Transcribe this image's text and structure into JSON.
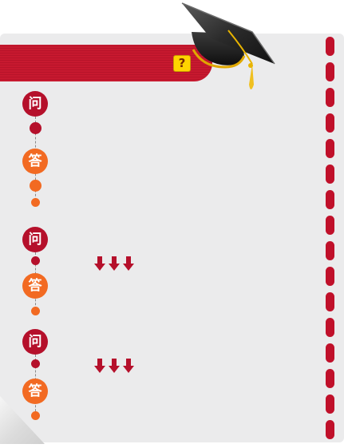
{
  "header": {
    "help_glyph": "?",
    "help_icon": "question-mark-icon",
    "decoration_icon": "graduation-cap-icon"
  },
  "colors": {
    "ribbon": "#c7192f",
    "ask_badge": "#b5102b",
    "answer_badge": "#f26a22",
    "card_background": "#ebebec",
    "side_dashes": "#c0102a",
    "arrows": "#b5102b",
    "help_icon": "#ffd400"
  },
  "qa": {
    "ask_label": "问",
    "answer_label": "答",
    "items": [
      {
        "ask": "问",
        "answer": "答",
        "expand_arrows": "triple-down-arrow-icon"
      },
      {
        "ask": "问",
        "answer": "答",
        "expand_arrows": "triple-down-arrow-icon"
      },
      {
        "ask": "问",
        "answer": "答",
        "expand_arrows": "triple-down-arrow-icon"
      }
    ]
  }
}
